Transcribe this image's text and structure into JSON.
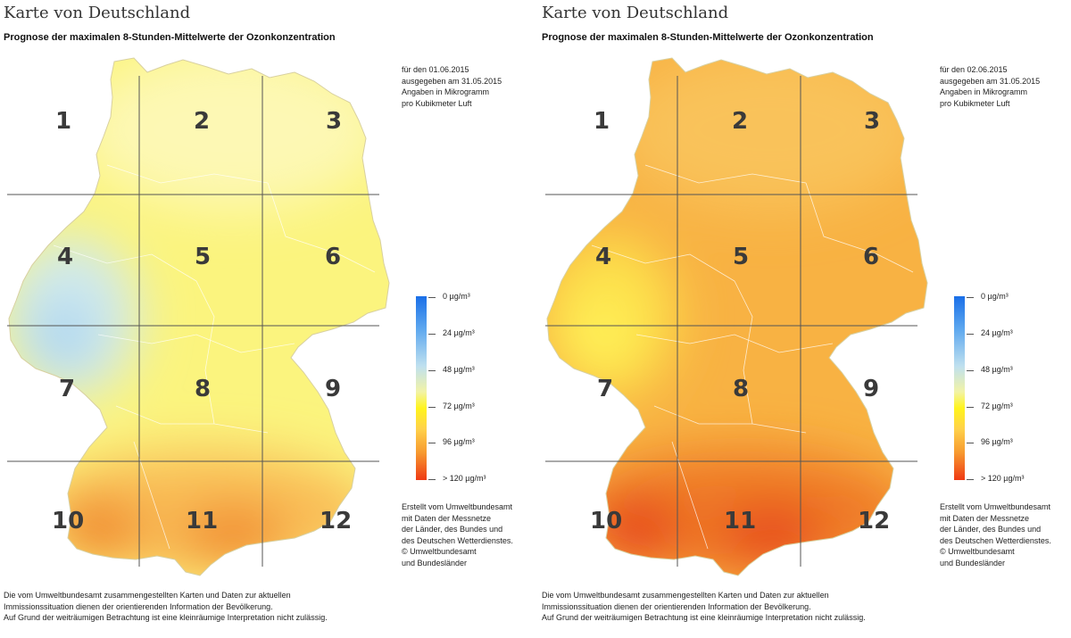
{
  "maps": [
    {
      "title": "Karte von Deutschland",
      "subtitle": "Prognose der maximalen 8-Stunden-Mittelwerte der Ozonkonzentration",
      "meta": [
        "für den 01.06.2015",
        "ausgegeben am 31.05.2015",
        "Angaben in Mikrogramm",
        "pro Kubikmeter Luft"
      ],
      "grid_labels": [
        "1",
        "2",
        "3",
        "4",
        "5",
        "6",
        "7",
        "8",
        "9",
        "10",
        "11",
        "12"
      ],
      "legend": [
        "0 µg/m³",
        "24 µg/m³",
        "48 µg/m³",
        "72 µg/m³",
        "96 µg/m³",
        "> 120 µg/m³"
      ],
      "credits": [
        "Erstellt vom Umweltbundesamt",
        "mit Daten der Messnetze",
        "der Länder, des Bundes und",
        "des Deutschen Wetterdienstes.",
        "© Umweltbundesamt",
        "und Bundesländer"
      ],
      "footer": [
        "Die vom Umweltbundesamt zusammengestellten Karten und Daten zur aktuellen",
        "Immissionssituation dienen der orientierenden Information der Bevölkerung.",
        "Auf Grund der weiträumigen Betrachtung ist eine kleinräumige Interpretation nicht zulässig."
      ],
      "colors": {
        "base": "#fbf47e",
        "north": "#fdf8b4",
        "west": "#cfe9ee",
        "west_blue": "#a9d3f0",
        "south": "#f9bd57",
        "south_hot": "#f0862a"
      }
    },
    {
      "title": "Karte von Deutschland",
      "subtitle": "Prognose der maximalen 8-Stunden-Mittelwerte der Ozonkonzentration",
      "meta": [
        "für den 02.06.2015",
        "ausgegeben am 31.05.2015",
        "Angaben in Mikrogramm",
        "pro Kubikmeter Luft"
      ],
      "grid_labels": [
        "1",
        "2",
        "3",
        "4",
        "5",
        "6",
        "7",
        "8",
        "9",
        "10",
        "11",
        "12"
      ],
      "legend": [
        "0 µg/m³",
        "24 µg/m³",
        "48 µg/m³",
        "72 µg/m³",
        "96 µg/m³",
        "> 120 µg/m³"
      ],
      "credits": [
        "Erstellt vom Umweltbundesamt",
        "mit Daten der Messnetze",
        "der Länder, des Bundes und",
        "des Deutschen Wetterdienstes.",
        "© Umweltbundesamt",
        "und Bundesländer"
      ],
      "footer": [
        "Die vom Umweltbundesamt zusammengestellten Karten und Daten zur aktuellen",
        "Immissionssituation dienen der orientierenden Information der Bevölkerung.",
        "Auf Grund der weiträumigen Betrachtung ist eine kleinräumige Interpretation nicht zulässig."
      ],
      "colors": {
        "base": "#f8b243",
        "north": "#f9c25a",
        "west": "#fde14c",
        "west_blue": "#fff35a",
        "south": "#ef7a26",
        "south_hot": "#e6411a"
      }
    }
  ]
}
